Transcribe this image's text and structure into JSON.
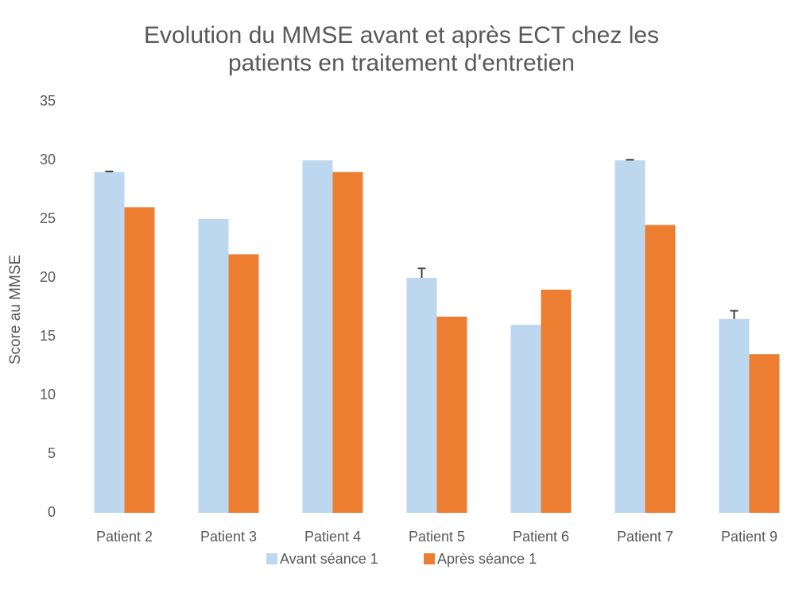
{
  "chart_data": {
    "type": "bar",
    "title": [
      "Evolution du MMSE avant et après ECT chez les",
      "patients en traitement d'entretien"
    ],
    "y_label": "Score au MMSE",
    "categories": [
      "Patient 2",
      "Patient 3",
      "Patient 4",
      "Patient 5",
      "Patient 6",
      "Patient 7",
      "Patient 9"
    ],
    "series": [
      {
        "name": "Avant séance 1",
        "color": "#bdd7ee",
        "values": [
          29,
          25,
          30,
          20,
          16,
          30,
          16.5
        ],
        "errors": [
          0.05,
          null,
          null,
          0.8,
          null,
          0.05,
          0.7
        ]
      },
      {
        "name": "Après séance 1",
        "color": "#ed7d31",
        "values": [
          26,
          22,
          29,
          16.7,
          19,
          24.5,
          13.5
        ]
      }
    ],
    "ylim": [
      0,
      35
    ],
    "yticks": [
      0,
      5,
      10,
      15,
      20,
      25,
      30,
      35
    ],
    "grid": false,
    "legend": "bottom"
  }
}
